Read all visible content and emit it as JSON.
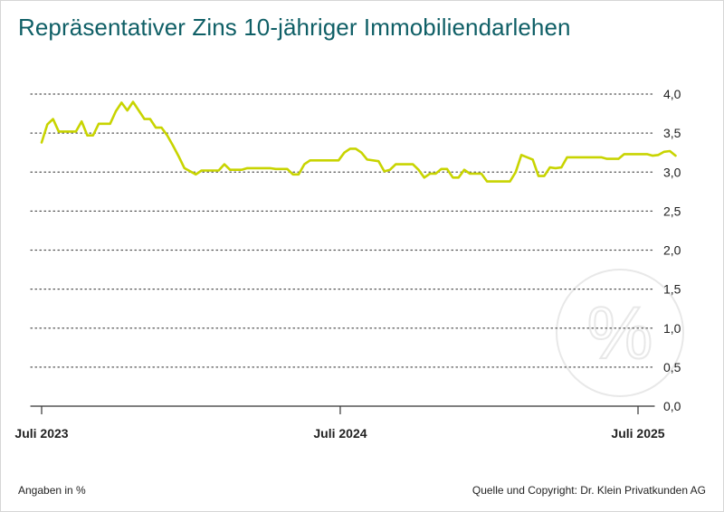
{
  "header": {
    "title": "Repräsentativer Zins 10-jähriger Immobiliendarlehen"
  },
  "footer": {
    "units_note": "Angaben in %",
    "source": "Quelle und Copyright: Dr. Klein Privatkunden AG"
  },
  "colors": {
    "line": "#c8d400",
    "title": "#0f5f66",
    "grid": "#555555",
    "watermark": "#e8e8e8"
  },
  "watermark": {
    "icon": "percent-icon",
    "glyph": "%"
  },
  "chart_data": {
    "type": "line",
    "title": "Repräsentativer Zins 10-jähriger Immobiliendarlehen",
    "ylim": [
      0,
      4
    ],
    "yticks": [
      0,
      0.5,
      1,
      1.5,
      2,
      2.5,
      3,
      3.5,
      4
    ],
    "ytick_labels": [
      "0,0",
      "0,5",
      "1,0",
      "1,5",
      "2,0",
      "2,5",
      "3,0",
      "3,5",
      "4,0"
    ],
    "xticks": [
      "2023-07",
      "2024-07",
      "2025-07"
    ],
    "xtick_labels": [
      "Juli 2023",
      "Juli 2024",
      "Juli 2025"
    ],
    "grid": "horizontal dotted",
    "series": [
      {
        "values": [
          {
            "x": "2023-07-01",
            "y": 3.38
          },
          {
            "x": "2023-07-08",
            "y": 3.61
          },
          {
            "x": "2023-07-15",
            "y": 3.68
          },
          {
            "x": "2023-07-22",
            "y": 3.52
          },
          {
            "x": "2023-07-29",
            "y": 3.52
          },
          {
            "x": "2023-08-05",
            "y": 3.52
          },
          {
            "x": "2023-08-12",
            "y": 3.52
          },
          {
            "x": "2023-08-19",
            "y": 3.65
          },
          {
            "x": "2023-08-26",
            "y": 3.47
          },
          {
            "x": "2023-09-02",
            "y": 3.47
          },
          {
            "x": "2023-09-09",
            "y": 3.62
          },
          {
            "x": "2023-09-16",
            "y": 3.62
          },
          {
            "x": "2023-09-23",
            "y": 3.62
          },
          {
            "x": "2023-09-30",
            "y": 3.78
          },
          {
            "x": "2023-10-07",
            "y": 3.89
          },
          {
            "x": "2023-10-14",
            "y": 3.79
          },
          {
            "x": "2023-10-21",
            "y": 3.9
          },
          {
            "x": "2023-10-28",
            "y": 3.79
          },
          {
            "x": "2023-11-04",
            "y": 3.68
          },
          {
            "x": "2023-11-11",
            "y": 3.68
          },
          {
            "x": "2023-11-18",
            "y": 3.57
          },
          {
            "x": "2023-11-25",
            "y": 3.57
          },
          {
            "x": "2023-12-02",
            "y": 3.47
          },
          {
            "x": "2023-12-09",
            "y": 3.34
          },
          {
            "x": "2023-12-16",
            "y": 3.2
          },
          {
            "x": "2023-12-23",
            "y": 3.05
          },
          {
            "x": "2024-01-06",
            "y": 2.97
          },
          {
            "x": "2024-01-13",
            "y": 3.02
          },
          {
            "x": "2024-01-20",
            "y": 3.02
          },
          {
            "x": "2024-02-03",
            "y": 3.02
          },
          {
            "x": "2024-02-10",
            "y": 3.1
          },
          {
            "x": "2024-02-17",
            "y": 3.03
          },
          {
            "x": "2024-03-02",
            "y": 3.03
          },
          {
            "x": "2024-03-09",
            "y": 3.05
          },
          {
            "x": "2024-04-06",
            "y": 3.05
          },
          {
            "x": "2024-04-13",
            "y": 3.04
          },
          {
            "x": "2024-04-27",
            "y": 3.04
          },
          {
            "x": "2024-05-04",
            "y": 2.97
          },
          {
            "x": "2024-05-11",
            "y": 2.97
          },
          {
            "x": "2024-05-18",
            "y": 3.1
          },
          {
            "x": "2024-05-25",
            "y": 3.15
          },
          {
            "x": "2024-06-29",
            "y": 3.15
          },
          {
            "x": "2024-07-06",
            "y": 3.25
          },
          {
            "x": "2024-07-13",
            "y": 3.3
          },
          {
            "x": "2024-07-20",
            "y": 3.3
          },
          {
            "x": "2024-07-27",
            "y": 3.25
          },
          {
            "x": "2024-08-03",
            "y": 3.16
          },
          {
            "x": "2024-08-17",
            "y": 3.14
          },
          {
            "x": "2024-08-24",
            "y": 3.01
          },
          {
            "x": "2024-08-31",
            "y": 3.03
          },
          {
            "x": "2024-09-07",
            "y": 3.1
          },
          {
            "x": "2024-09-28",
            "y": 3.1
          },
          {
            "x": "2024-10-05",
            "y": 3.03
          },
          {
            "x": "2024-10-12",
            "y": 2.93
          },
          {
            "x": "2024-10-19",
            "y": 2.98
          },
          {
            "x": "2024-10-26",
            "y": 2.98
          },
          {
            "x": "2024-11-02",
            "y": 3.04
          },
          {
            "x": "2024-11-09",
            "y": 3.04
          },
          {
            "x": "2024-11-16",
            "y": 2.93
          },
          {
            "x": "2024-11-23",
            "y": 2.93
          },
          {
            "x": "2024-11-30",
            "y": 3.03
          },
          {
            "x": "2024-12-07",
            "y": 2.98
          },
          {
            "x": "2024-12-21",
            "y": 2.98
          },
          {
            "x": "2024-12-28",
            "y": 2.88
          },
          {
            "x": "2025-01-25",
            "y": 2.88
          },
          {
            "x": "2025-02-01",
            "y": 3.0
          },
          {
            "x": "2025-02-08",
            "y": 3.22
          },
          {
            "x": "2025-02-22",
            "y": 3.16
          },
          {
            "x": "2025-03-01",
            "y": 2.95
          },
          {
            "x": "2025-03-08",
            "y": 2.95
          },
          {
            "x": "2025-03-15",
            "y": 3.06
          },
          {
            "x": "2025-03-22",
            "y": 3.05
          },
          {
            "x": "2025-03-29",
            "y": 3.06
          },
          {
            "x": "2025-04-05",
            "y": 3.19
          },
          {
            "x": "2025-05-17",
            "y": 3.19
          },
          {
            "x": "2025-05-24",
            "y": 3.17
          },
          {
            "x": "2025-06-07",
            "y": 3.17
          },
          {
            "x": "2025-06-14",
            "y": 3.23
          },
          {
            "x": "2025-07-12",
            "y": 3.23
          },
          {
            "x": "2025-07-19",
            "y": 3.21
          },
          {
            "x": "2025-07-26",
            "y": 3.22
          },
          {
            "x": "2025-08-02",
            "y": 3.26
          },
          {
            "x": "2025-08-09",
            "y": 3.27
          },
          {
            "x": "2025-08-16",
            "y": 3.21
          }
        ]
      }
    ]
  }
}
